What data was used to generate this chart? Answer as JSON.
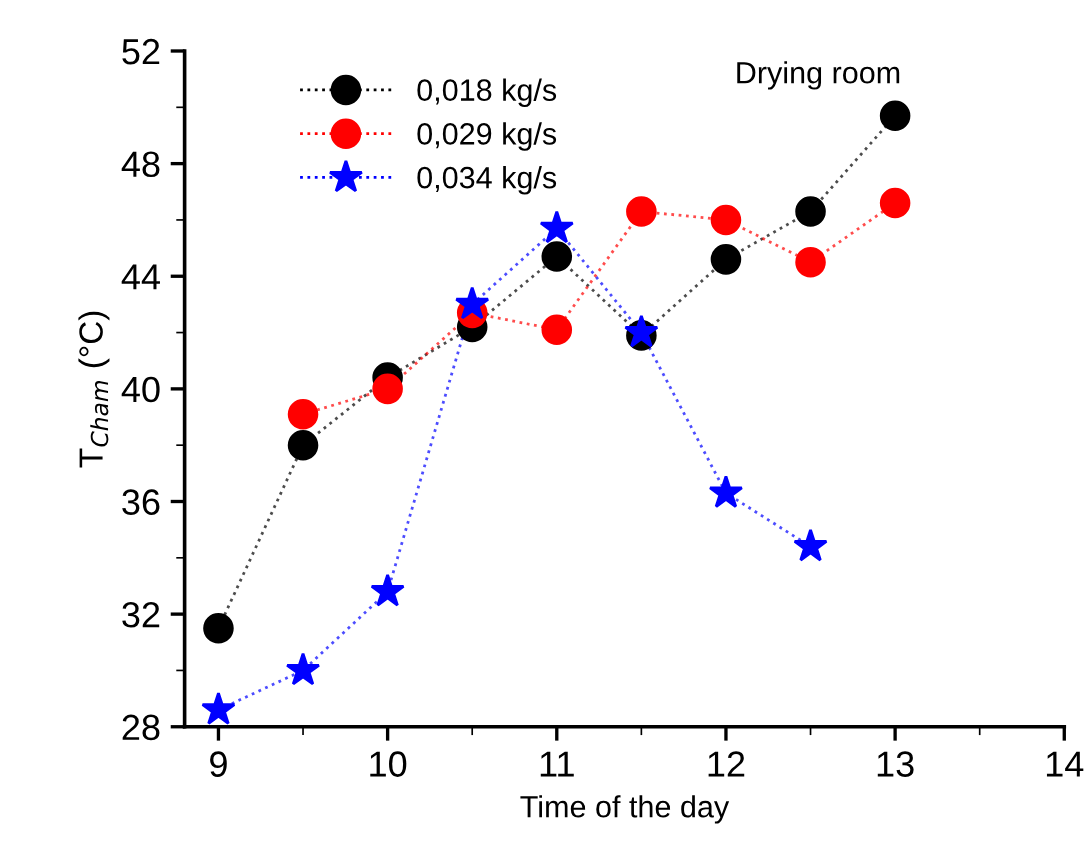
{
  "chart_data": {
    "type": "line",
    "title": "Drying room",
    "xlabel": "Time of the day",
    "ylabel": "T$_{Cham}$ (°C)",
    "xlim": [
      8.8,
      14
    ],
    "ylim": [
      28,
      52
    ],
    "xticks": [
      9,
      10,
      11,
      12,
      13,
      14
    ],
    "yticks": [
      28,
      32,
      36,
      40,
      44,
      48,
      52
    ],
    "grid": false,
    "legend": "top left",
    "line_style": "dotted",
    "series": [
      {
        "name": "0,018 kg/s",
        "color": "#000000",
        "marker": "circle",
        "x": [
          9,
          9.5,
          10,
          10.5,
          11,
          11.5,
          12,
          12.5,
          13
        ],
        "values": [
          31.5,
          38.0,
          40.4,
          42.2,
          44.7,
          41.9,
          44.6,
          46.3,
          49.7
        ]
      },
      {
        "name": "0,029 kg/s",
        "color": "#ff0000",
        "marker": "circle",
        "x": [
          9.5,
          10,
          10.5,
          11,
          11.5,
          12,
          12.5,
          13
        ],
        "values": [
          39.1,
          40.0,
          42.7,
          42.1,
          46.3,
          46.0,
          44.5,
          46.6
        ]
      },
      {
        "name": "0,034 kg/s",
        "color": "#0000ff",
        "marker": "star",
        "x": [
          9,
          9.5,
          10,
          10.5,
          11,
          11.5,
          12,
          12.5
        ],
        "values": [
          28.6,
          30.0,
          32.8,
          43.0,
          45.7,
          42.0,
          36.3,
          34.4
        ]
      }
    ]
  }
}
